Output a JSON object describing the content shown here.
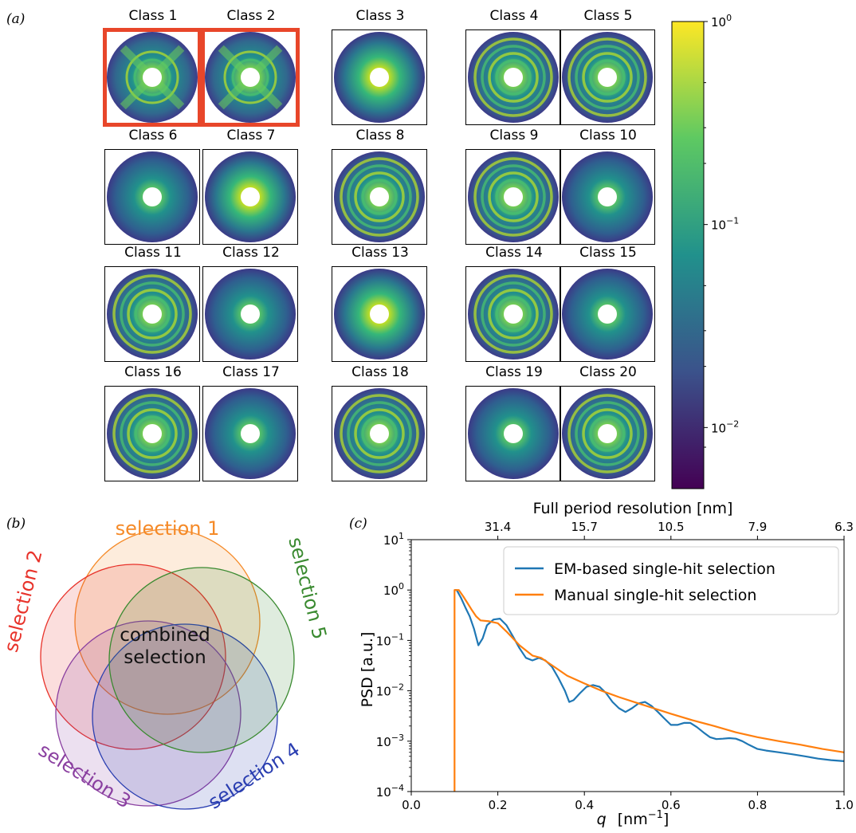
{
  "panel_labels": {
    "a": "(a)",
    "b": "(b)",
    "c": "(c)"
  },
  "classes": [
    {
      "label": "Class 1",
      "highlight": true
    },
    {
      "label": "Class 2",
      "highlight": true
    },
    {
      "label": "Class 3",
      "highlight": false
    },
    {
      "label": "Class 4",
      "highlight": false
    },
    {
      "label": "Class 5",
      "highlight": false
    },
    {
      "label": "Class 6",
      "highlight": false
    },
    {
      "label": "Class 7",
      "highlight": false
    },
    {
      "label": "Class 8",
      "highlight": false
    },
    {
      "label": "Class 9",
      "highlight": false
    },
    {
      "label": "Class 10",
      "highlight": false
    },
    {
      "label": "Class 11",
      "highlight": false
    },
    {
      "label": "Class 12",
      "highlight": false
    },
    {
      "label": "Class 13",
      "highlight": false
    },
    {
      "label": "Class 14",
      "highlight": false
    },
    {
      "label": "Class 15",
      "highlight": false
    },
    {
      "label": "Class 16",
      "highlight": false
    },
    {
      "label": "Class 17",
      "highlight": false
    },
    {
      "label": "Class 18",
      "highlight": false
    },
    {
      "label": "Class 19",
      "highlight": false
    },
    {
      "label": "Class 20",
      "highlight": false
    }
  ],
  "colorbar": {
    "scale": "log",
    "ticks": [
      {
        "base": "10",
        "exp": "0"
      },
      {
        "base": "10",
        "exp": "−1"
      },
      {
        "base": "10",
        "exp": "−2"
      }
    ],
    "colormap": [
      "#fde725",
      "#5ec962",
      "#21918c",
      "#3b528b",
      "#440154"
    ],
    "range": [
      0.005,
      1
    ]
  },
  "venn": {
    "sets": [
      {
        "label": "selection 1",
        "color": "#f58a28"
      },
      {
        "label": "selection 2",
        "color": "#e8322a"
      },
      {
        "label": "selection 3",
        "color": "#8a3fa0"
      },
      {
        "label": "selection 4",
        "color": "#2a3eb1"
      },
      {
        "label": "selection 5",
        "color": "#3a8a30"
      }
    ],
    "center_label_line1": "combined",
    "center_label_line2": "selection"
  },
  "chart_data": {
    "type": "line",
    "title": "",
    "xlabel": "q  [nm⁻¹]",
    "xlabel_base": "q",
    "xlabel_unit": "[nm",
    "xlabel_exp": "−1",
    "xlabel_close": "]",
    "ylabel": "PSD  [a.u.]",
    "top_xlabel": "Full period resolution  [nm]",
    "top_ticks": [
      "31.4",
      "15.7",
      "10.5",
      "7.9",
      "6.3"
    ],
    "top_tick_q": [
      0.2,
      0.4,
      0.6,
      0.8,
      1.0
    ],
    "xlim": [
      0.0,
      1.0
    ],
    "ylim": [
      0.0001,
      10
    ],
    "yscale": "log",
    "x_ticks": [
      "0.0",
      "0.2",
      "0.4",
      "0.6",
      "0.8",
      "1.0"
    ],
    "y_ticks": [
      {
        "base": "10",
        "exp": "1"
      },
      {
        "base": "10",
        "exp": "0"
      },
      {
        "base": "10",
        "exp": "−1"
      },
      {
        "base": "10",
        "exp": "−2"
      },
      {
        "base": "10",
        "exp": "−3"
      },
      {
        "base": "10",
        "exp": "−4"
      }
    ],
    "legend_position": "top-right",
    "series": [
      {
        "name": "EM-based single-hit selection",
        "color": "#1f77b4",
        "x": [
          0.1,
          0.105,
          0.115,
          0.125,
          0.135,
          0.145,
          0.155,
          0.165,
          0.175,
          0.19,
          0.205,
          0.22,
          0.235,
          0.25,
          0.265,
          0.28,
          0.295,
          0.31,
          0.325,
          0.34,
          0.355,
          0.365,
          0.375,
          0.39,
          0.405,
          0.42,
          0.435,
          0.45,
          0.465,
          0.48,
          0.495,
          0.51,
          0.525,
          0.54,
          0.555,
          0.57,
          0.585,
          0.6,
          0.615,
          0.63,
          0.645,
          0.66,
          0.675,
          0.69,
          0.705,
          0.72,
          0.735,
          0.75,
          0.765,
          0.78,
          0.8,
          0.82,
          0.85,
          0.88,
          0.91,
          0.94,
          0.97,
          1.0
        ],
        "y": [
          1.0,
          1.0,
          0.7,
          0.45,
          0.3,
          0.17,
          0.08,
          0.11,
          0.2,
          0.26,
          0.27,
          0.2,
          0.12,
          0.07,
          0.045,
          0.04,
          0.045,
          0.04,
          0.03,
          0.018,
          0.01,
          0.006,
          0.0065,
          0.009,
          0.012,
          0.013,
          0.012,
          0.009,
          0.006,
          0.0045,
          0.0038,
          0.0045,
          0.0056,
          0.006,
          0.005,
          0.0038,
          0.0028,
          0.0021,
          0.0021,
          0.0023,
          0.0023,
          0.0019,
          0.0015,
          0.0012,
          0.0011,
          0.00112,
          0.00115,
          0.00112,
          0.001,
          0.00085,
          0.0007,
          0.00065,
          0.0006,
          0.00055,
          0.0005,
          0.00045,
          0.00042,
          0.0004
        ]
      },
      {
        "name": "Manual single-hit selection",
        "color": "#ff7f0e",
        "x": [
          0.1,
          0.1,
          0.102,
          0.11,
          0.12,
          0.13,
          0.14,
          0.15,
          0.16,
          0.18,
          0.2,
          0.22,
          0.25,
          0.28,
          0.3,
          0.33,
          0.36,
          0.4,
          0.44,
          0.48,
          0.52,
          0.56,
          0.6,
          0.65,
          0.7,
          0.75,
          0.8,
          0.85,
          0.9,
          0.95,
          1.0
        ],
        "y": [
          0.0001,
          1.0,
          1.0,
          1.0,
          0.75,
          0.55,
          0.4,
          0.3,
          0.25,
          0.24,
          0.22,
          0.15,
          0.08,
          0.05,
          0.045,
          0.03,
          0.02,
          0.014,
          0.01,
          0.0075,
          0.0058,
          0.0045,
          0.0035,
          0.0026,
          0.002,
          0.0015,
          0.0012,
          0.001,
          0.00085,
          0.0007,
          0.0006
        ]
      }
    ]
  }
}
